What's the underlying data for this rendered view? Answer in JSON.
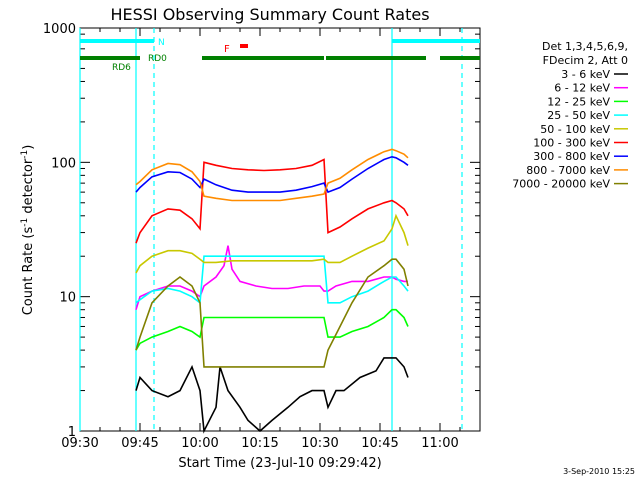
{
  "chart_data": {
    "type": "line",
    "title": "HESSI Observing Summary Count Rates",
    "xlabel": "Start Time (23-Jul-10 09:29:42)",
    "ylabel_main": "Count Rate (s",
    "ylabel_sup1": "-1",
    "ylabel_mid": " detector",
    "ylabel_sup2": "-1",
    "ylabel_end": ")",
    "yscale": "log",
    "ylim": [
      1,
      1000
    ],
    "xlim_minutes": [
      0,
      100
    ],
    "x_ticks": [
      "09:30",
      "09:45",
      "10:00",
      "10:15",
      "10:30",
      "10:45",
      "11:00"
    ],
    "x_tick_minutes": [
      0,
      15,
      30,
      45,
      60,
      75,
      90
    ],
    "y_ticks": [
      "1",
      "10",
      "100",
      "1000"
    ],
    "y_tick_values": [
      1,
      10,
      100,
      1000
    ],
    "date_stamp": "3-Sep-2010 15:25",
    "legend_header": [
      "Det 1,3,4,5,6,9,",
      "FDecim 2, Att 0"
    ],
    "series": [
      {
        "name": "3 - 6 keV",
        "color": "#000000",
        "x": [
          14,
          15,
          18,
          22,
          25,
          28,
          30,
          31,
          34,
          35,
          37,
          40,
          42,
          45,
          48,
          52,
          55,
          58,
          61,
          62,
          64,
          66,
          70,
          74,
          76,
          78,
          79,
          81,
          82
        ],
        "y": [
          2,
          2.5,
          2,
          1.8,
          2,
          3,
          2,
          1,
          1.5,
          3,
          2,
          1.5,
          1.2,
          1,
          1.2,
          1.5,
          1.8,
          2,
          2,
          1.5,
          2,
          2,
          2.5,
          2.8,
          3.5,
          3.5,
          3.5,
          3,
          2.5
        ]
      },
      {
        "name": "6 - 12 keV",
        "color": "#ff00ff",
        "x": [
          14,
          15,
          18,
          22,
          25,
          28,
          30,
          31,
          34,
          36,
          37,
          38,
          40,
          44,
          48,
          52,
          56,
          60,
          61,
          62,
          64,
          68,
          72,
          76,
          78,
          79,
          81,
          82
        ],
        "y": [
          8,
          10,
          11,
          12,
          12,
          11,
          10,
          12,
          14,
          17,
          24,
          16,
          13,
          12,
          11.5,
          11.5,
          12,
          12,
          11,
          11,
          12,
          13,
          13,
          14,
          14,
          13.5,
          13,
          13
        ]
      },
      {
        "name": "12 - 25 keV",
        "color": "#00ff00",
        "x": [
          14,
          15,
          18,
          22,
          25,
          28,
          30,
          31,
          34,
          38,
          42,
          46,
          50,
          54,
          58,
          61,
          62,
          65,
          68,
          72,
          76,
          78,
          79,
          81,
          82
        ],
        "y": [
          4,
          4.5,
          5,
          5.5,
          6,
          5.5,
          5,
          7,
          7,
          7,
          7,
          7,
          7,
          7,
          7,
          7,
          5,
          5,
          5.5,
          6,
          7,
          8,
          8,
          7,
          6
        ]
      },
      {
        "name": "25 - 50 keV",
        "color": "#00ffff",
        "x": [
          14,
          15,
          18,
          22,
          25,
          28,
          30,
          31,
          34,
          38,
          42,
          46,
          50,
          54,
          58,
          61,
          62,
          65,
          68,
          72,
          76,
          78,
          79,
          81,
          82
        ],
        "y": [
          9,
          9.5,
          11,
          11.5,
          11,
          10,
          9,
          20,
          20,
          20,
          20,
          20,
          20,
          20,
          20,
          20,
          9,
          9,
          10,
          11,
          13,
          14,
          14,
          12,
          11
        ]
      },
      {
        "name": "50 - 100 keV",
        "color": "#c8c800",
        "x": [
          14,
          15,
          18,
          22,
          25,
          28,
          30,
          31,
          34,
          38,
          42,
          46,
          50,
          54,
          58,
          61,
          62,
          65,
          68,
          72,
          76,
          78,
          79,
          81,
          82
        ],
        "y": [
          15,
          17,
          20,
          22,
          22,
          21,
          19,
          18,
          18,
          18.5,
          18.5,
          18.5,
          18.5,
          18.5,
          18.5,
          19,
          18,
          18,
          20,
          23,
          26,
          32,
          40,
          30,
          24
        ]
      },
      {
        "name": "100 - 300 keV",
        "color": "#ff0000",
        "x": [
          14,
          15,
          18,
          22,
          25,
          28,
          30,
          31,
          34,
          38,
          42,
          46,
          50,
          54,
          58,
          61,
          62,
          65,
          68,
          72,
          76,
          78,
          79,
          81,
          82
        ],
        "y": [
          25,
          30,
          40,
          45,
          44,
          38,
          32,
          100,
          95,
          90,
          88,
          87,
          88,
          90,
          95,
          105,
          30,
          33,
          38,
          45,
          50,
          52,
          50,
          45,
          40
        ]
      },
      {
        "name": "300 - 800 keV",
        "color": "#0000ff",
        "x": [
          14,
          15,
          18,
          22,
          25,
          28,
          30,
          31,
          34,
          38,
          42,
          46,
          50,
          54,
          58,
          61,
          62,
          65,
          68,
          72,
          76,
          78,
          79,
          81,
          82
        ],
        "y": [
          60,
          65,
          78,
          85,
          84,
          75,
          65,
          75,
          68,
          62,
          60,
          60,
          60,
          62,
          66,
          70,
          60,
          65,
          75,
          90,
          105,
          110,
          108,
          100,
          95
        ]
      },
      {
        "name": "800 - 7000 keV",
        "color": "#ff8c00",
        "x": [
          14,
          15,
          18,
          22,
          25,
          28,
          30,
          31,
          34,
          38,
          42,
          46,
          50,
          54,
          58,
          61,
          62,
          65,
          68,
          72,
          76,
          78,
          79,
          81,
          82
        ],
        "y": [
          68,
          72,
          88,
          98,
          96,
          85,
          72,
          56,
          54,
          52,
          52,
          52,
          52,
          54,
          56,
          58,
          70,
          76,
          88,
          105,
          120,
          125,
          122,
          115,
          108
        ]
      },
      {
        "name": "7000 - 20000 keV",
        "color": "#808000",
        "x": [
          14,
          15,
          18,
          22,
          25,
          28,
          30,
          31,
          34,
          38,
          42,
          46,
          50,
          54,
          58,
          61,
          62,
          65,
          68,
          72,
          76,
          78,
          79,
          81,
          82
        ],
        "y": [
          4,
          5,
          9,
          12,
          14,
          12,
          9,
          3,
          3,
          3,
          3,
          3,
          3,
          3,
          3,
          3,
          4,
          6,
          9,
          14,
          17,
          19,
          19,
          16,
          12
        ]
      }
    ],
    "vertical_lines": [
      {
        "x": 14,
        "style": "solid",
        "color": "#00ffff"
      },
      {
        "x": 18.5,
        "style": "dashed",
        "color": "#00ffff"
      },
      {
        "x": 78,
        "style": "solid",
        "color": "#00ffff"
      },
      {
        "x": 95.5,
        "style": "dashed",
        "color": "#00ffff"
      },
      {
        "x": 0,
        "style": "solid",
        "color": "#00ffff"
      }
    ],
    "flag_bars": [
      {
        "label": "N",
        "color": "#00ffff",
        "segments": [
          [
            0,
            18.5
          ],
          [
            78,
            100
          ]
        ]
      },
      {
        "label": "F",
        "color": "#ff0000",
        "segments": [
          [
            40,
            42
          ]
        ]
      },
      {
        "label": "RD0",
        "color": "#008000",
        "segments": [
          [
            0,
            15
          ],
          [
            30.5,
            61
          ],
          [
            61.5,
            86.5
          ],
          [
            90,
            100
          ]
        ]
      }
    ],
    "flag_labels": {
      "N": "N",
      "F": "F",
      "RD0": "RD0",
      "RD6": "RD6"
    }
  }
}
